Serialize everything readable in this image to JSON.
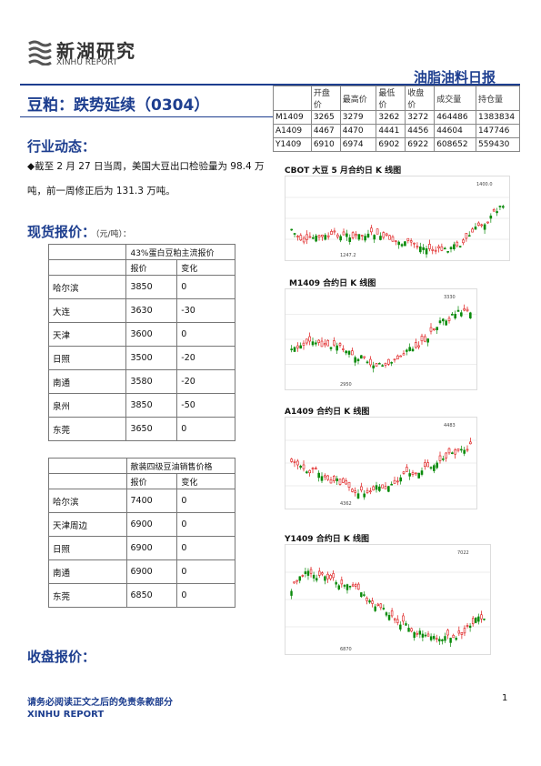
{
  "header": {
    "brand_cn": "新湖研究",
    "brand_en": "XINHU REPORT",
    "doc_type": "油脂油料日报"
  },
  "title": "豆粕：跌势延续（0304）",
  "industry": {
    "heading": "行业动态：",
    "text": "◆截至 2 月 27 日当周，美国大豆出口检验量为 98.4 万吨，前一周修正后为 131.3 万吨。"
  },
  "spot": {
    "heading": "现货报价：",
    "unit": "（元/吨）：",
    "table1": {
      "caption": "43%蛋白豆粕主流报价",
      "col_price": "报价",
      "col_change": "变化",
      "rows": [
        {
          "city": "哈尔滨",
          "price": "3850",
          "change": "0"
        },
        {
          "city": "大连",
          "price": "3630",
          "change": "-30"
        },
        {
          "city": "天津",
          "price": "3600",
          "change": "0"
        },
        {
          "city": "日照",
          "price": "3500",
          "change": "-20"
        },
        {
          "city": "南通",
          "price": "3580",
          "change": "-20"
        },
        {
          "city": "泉州",
          "price": "3850",
          "change": "-50"
        },
        {
          "city": "东莞",
          "price": "3650",
          "change": "0"
        }
      ]
    },
    "table2": {
      "caption": "散装四级豆油销售价格",
      "col_price": "报价",
      "col_change": "变化",
      "rows": [
        {
          "city": "哈尔滨",
          "price": "7400",
          "change": "0"
        },
        {
          "city": "天津周边",
          "price": "6900",
          "change": "0"
        },
        {
          "city": "日照",
          "price": "6900",
          "change": "0"
        },
        {
          "city": "南通",
          "price": "6900",
          "change": "0"
        },
        {
          "city": "东莞",
          "price": "6850",
          "change": "0"
        }
      ]
    }
  },
  "closing_heading": "收盘报价：",
  "futures": {
    "columns": [
      "",
      "开盘价",
      "最高价",
      "最低价",
      "收盘价",
      "成交量",
      "持仓量"
    ],
    "rows": [
      [
        "M1409",
        "3265",
        "3279",
        "3262",
        "3272",
        "464486",
        "1383834"
      ],
      [
        "A1409",
        "4467",
        "4470",
        "4441",
        "4456",
        "44604",
        "147746"
      ],
      [
        "Y1409",
        "6910",
        "6974",
        "6902",
        "6922",
        "608652",
        "559430"
      ]
    ]
  },
  "charts": [
    {
      "title": "CBOT 大豆 5 月合约日 K 线图",
      "labels": [
        "1400.0",
        "1247.2"
      ]
    },
    {
      "title": "M1409 合约日 K 线图",
      "labels": [
        "3330",
        "2950"
      ]
    },
    {
      "title": "A1409 合约日 K 线图",
      "labels": [
        "4483",
        "4362"
      ]
    },
    {
      "title": "Y1409 合约日 K 线图",
      "labels": [
        "7022",
        "6870"
      ]
    }
  ],
  "footer": {
    "note": "请务必阅读正文之后的免责条款部分",
    "brand": "XINHU REPORT",
    "page": "1"
  }
}
